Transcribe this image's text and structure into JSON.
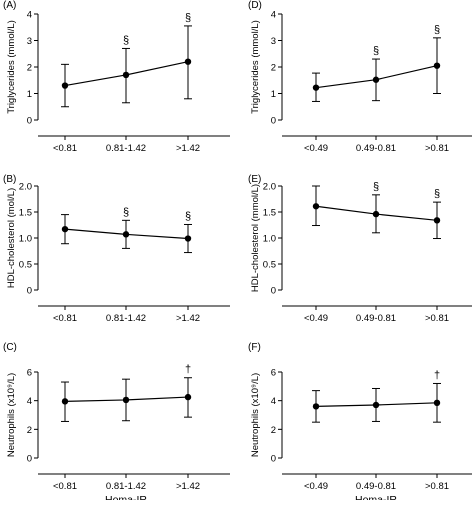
{
  "chart_data": [
    {
      "panel_label": "(A)",
      "type": "line",
      "ylabel": "Triglycerides (mmol/L)",
      "xlabel": "",
      "ylim": [
        0,
        4
      ],
      "yticks": [
        "0",
        "1",
        "2",
        "3",
        "4"
      ],
      "categories": [
        "<0.81",
        "0.81-1.42",
        ">1.42"
      ],
      "values": [
        1.3,
        1.7,
        2.2
      ],
      "error_upper": [
        2.1,
        2.7,
        3.55
      ],
      "error_lower": [
        0.5,
        0.65,
        0.8
      ],
      "markers": [
        "",
        "§",
        "§"
      ]
    },
    {
      "panel_label": "(B)",
      "type": "line",
      "ylabel": "HDL-cholesterol (mol/L)",
      "xlabel": "",
      "ylim": [
        0,
        2
      ],
      "yticks": [
        "0",
        "0.5",
        "1.0",
        "1.5",
        "2.0"
      ],
      "categories": [
        "<0.81",
        "0.81-1.42",
        ">1.42"
      ],
      "values": [
        1.17,
        1.07,
        0.99
      ],
      "error_upper": [
        1.45,
        1.34,
        1.26
      ],
      "error_lower": [
        0.89,
        0.8,
        0.72
      ],
      "markers": [
        "",
        "§",
        "§"
      ]
    },
    {
      "panel_label": "(C)",
      "type": "line",
      "ylabel": "Neutrophils (x10⁹/L)",
      "xlabel": "Homa-IR",
      "ylim": [
        0,
        6
      ],
      "yticks": [
        "0",
        "2",
        "4",
        "6"
      ],
      "categories": [
        "<0.81",
        "0.81-1.42",
        ">1.42"
      ],
      "values": [
        3.95,
        4.05,
        4.25
      ],
      "error_upper": [
        5.3,
        5.5,
        5.6
      ],
      "error_lower": [
        2.55,
        2.6,
        2.85
      ],
      "markers": [
        "",
        "",
        "†"
      ]
    },
    {
      "panel_label": "(D)",
      "type": "line",
      "ylabel": "Triglycerides (mmol/L)",
      "xlabel": "",
      "ylim": [
        0,
        4
      ],
      "yticks": [
        "0",
        "1",
        "2",
        "3",
        "4"
      ],
      "categories": [
        "<0.49",
        "0.49-0.81",
        ">0.81"
      ],
      "values": [
        1.22,
        1.52,
        2.05
      ],
      "error_upper": [
        1.77,
        2.3,
        3.1
      ],
      "error_lower": [
        0.7,
        0.73,
        1.0
      ],
      "markers": [
        "",
        "§",
        "§"
      ]
    },
    {
      "panel_label": "(E)",
      "type": "line",
      "ylabel": "HDL-cholesterol (mmol/L)",
      "xlabel": "",
      "ylim": [
        0,
        2
      ],
      "yticks": [
        "0",
        "0.5",
        "1.0",
        "1.5",
        "2.0"
      ],
      "categories": [
        "<0.49",
        "0.49-0.81",
        ">0.81"
      ],
      "values": [
        1.61,
        1.46,
        1.34
      ],
      "error_upper": [
        2.0,
        1.83,
        1.69
      ],
      "error_lower": [
        1.24,
        1.1,
        0.99
      ],
      "markers": [
        "",
        "§",
        "§"
      ]
    },
    {
      "panel_label": "(F)",
      "type": "line",
      "ylabel": "Neutrophils (x10⁹/L)",
      "xlabel": "Homa-IR",
      "ylim": [
        0,
        6
      ],
      "yticks": [
        "0",
        "2",
        "4",
        "6"
      ],
      "categories": [
        "<0.49",
        "0.49-0.81",
        ">0.81"
      ],
      "values": [
        3.6,
        3.7,
        3.85
      ],
      "error_upper": [
        4.7,
        4.85,
        5.2
      ],
      "error_lower": [
        2.5,
        2.55,
        2.5
      ],
      "markers": [
        "",
        "",
        "†"
      ]
    }
  ]
}
